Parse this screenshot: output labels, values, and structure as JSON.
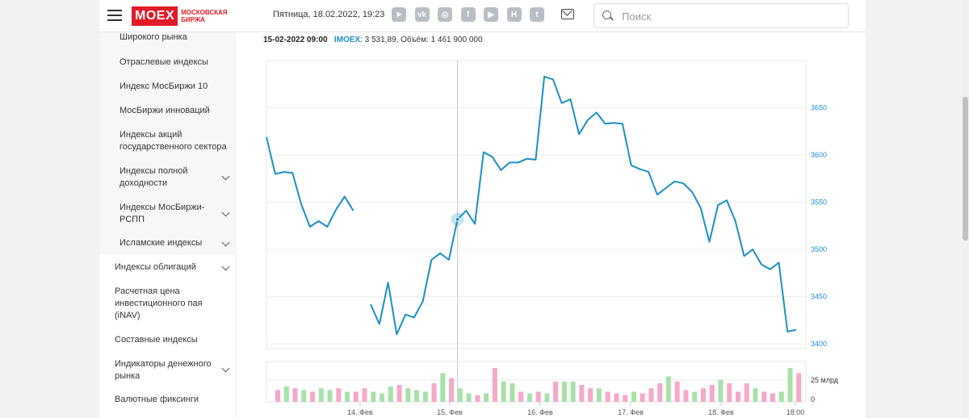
{
  "header": {
    "logo_text": "MOEX",
    "logo_sub": "МОСКОВСКАЯ БИРЖА",
    "datetime": "Пятница, 18.02.2022, 19:23",
    "social_icons": [
      "telegram-icon",
      "vk-icon",
      "instagram-icon",
      "facebook-icon",
      "youtube-icon",
      "habr-icon",
      "twitter-icon"
    ],
    "search_placeholder": "Поиск"
  },
  "sidebar": {
    "subitems": [
      {
        "label": "Широкого рынка"
      },
      {
        "label": "Отраслевые индексы"
      },
      {
        "label": "Индекс МосБиржи 10"
      },
      {
        "label": "МосБиржи инноваций"
      },
      {
        "label": "Индексы акций государственного сектора"
      },
      {
        "label": "Индексы полной доходности"
      },
      {
        "label": "Индексы МосБиржи-РСПП"
      },
      {
        "label": "Исламские индексы"
      }
    ],
    "items": [
      {
        "label": "Индексы облигаций"
      },
      {
        "label": "Расчетная цена инвестиционного пая (iNAV)"
      },
      {
        "label": "Составные индексы"
      },
      {
        "label": "Индикаторы денежного рынка"
      },
      {
        "label": "Валютные фиксинги"
      }
    ]
  },
  "chart_header": {
    "datetime": "15-02-2022 09:00",
    "ticker": "IMOEX",
    "value_text": ": 3 531,89, Объём: 1 461 900 000"
  },
  "colors": {
    "line": "#1a8fc4",
    "volume_up": "#a8e0a8",
    "volume_down": "#f5a8c8",
    "brand": "#e21b28"
  },
  "chart_data": {
    "type": "line",
    "x_tick_labels": [
      "14. Фев",
      "15. Фев",
      "16. Фев",
      "17. Фев",
      "18. Фев",
      "18:00"
    ],
    "y_ticks": [
      3400,
      3450,
      3500,
      3550,
      3600,
      3650
    ],
    "ylim": [
      3395,
      3700
    ],
    "volume_tick_labels": [
      "25 млрд",
      "0"
    ],
    "series": [
      {
        "values": [
          3619,
          3580,
          3582,
          3581,
          3548,
          3524,
          3530,
          3524,
          3542,
          3556,
          3541,
          null,
          3442,
          3421,
          3465,
          3410,
          3431,
          3428,
          3445,
          3489,
          3496,
          3489,
          3531.89,
          3541,
          3527,
          3603,
          3598,
          3584,
          3592,
          3592,
          3596,
          3595,
          3683,
          3680,
          3655,
          3659,
          3622,
          3637,
          3645,
          3633,
          3634,
          3633,
          3589,
          3585,
          3582,
          3558,
          3565,
          3572,
          3570,
          3561,
          3544,
          3508,
          3547,
          3552,
          3530,
          3493,
          3500,
          3484,
          3479,
          3486,
          3413,
          3415
        ]
      }
    ],
    "volume_up": [
      false,
      true,
      false,
      true,
      false,
      true,
      true,
      false,
      true,
      false,
      false,
      true,
      true,
      true,
      false,
      true,
      true,
      true,
      false,
      true,
      false,
      true,
      true,
      false,
      true,
      false,
      true,
      true,
      false,
      true,
      false,
      true,
      false,
      true,
      true,
      false,
      false,
      true,
      false,
      false,
      false,
      true,
      false,
      false,
      false,
      true,
      false,
      false,
      true,
      false,
      false,
      true,
      false,
      false,
      false,
      true,
      false,
      false,
      true,
      true,
      false,
      true
    ],
    "volume_levels": [
      0.35,
      0.45,
      0.4,
      0.35,
      0.3,
      0.4,
      0.35,
      0.4,
      0.3,
      0.3,
      0.4,
      0.3,
      0.25,
      0.45,
      0.5,
      0.4,
      0.35,
      0.3,
      0.55,
      0.85,
      0.7,
      0.4,
      0.25,
      0.2,
      0.25,
      1.0,
      0.6,
      0.55,
      0.3,
      0.25,
      0.3,
      0.25,
      0.6,
      0.6,
      0.6,
      0.5,
      0.4,
      0.4,
      0.3,
      0.25,
      0.2,
      0.3,
      0.25,
      0.4,
      0.55,
      0.75,
      0.6,
      0.35,
      0.3,
      0.4,
      0.5,
      0.65,
      0.55,
      0.3,
      0.55,
      0.4,
      0.3,
      0.25,
      0.3,
      1.0,
      0.85,
      0.5
    ],
    "hover_point_value": 3531.89
  }
}
